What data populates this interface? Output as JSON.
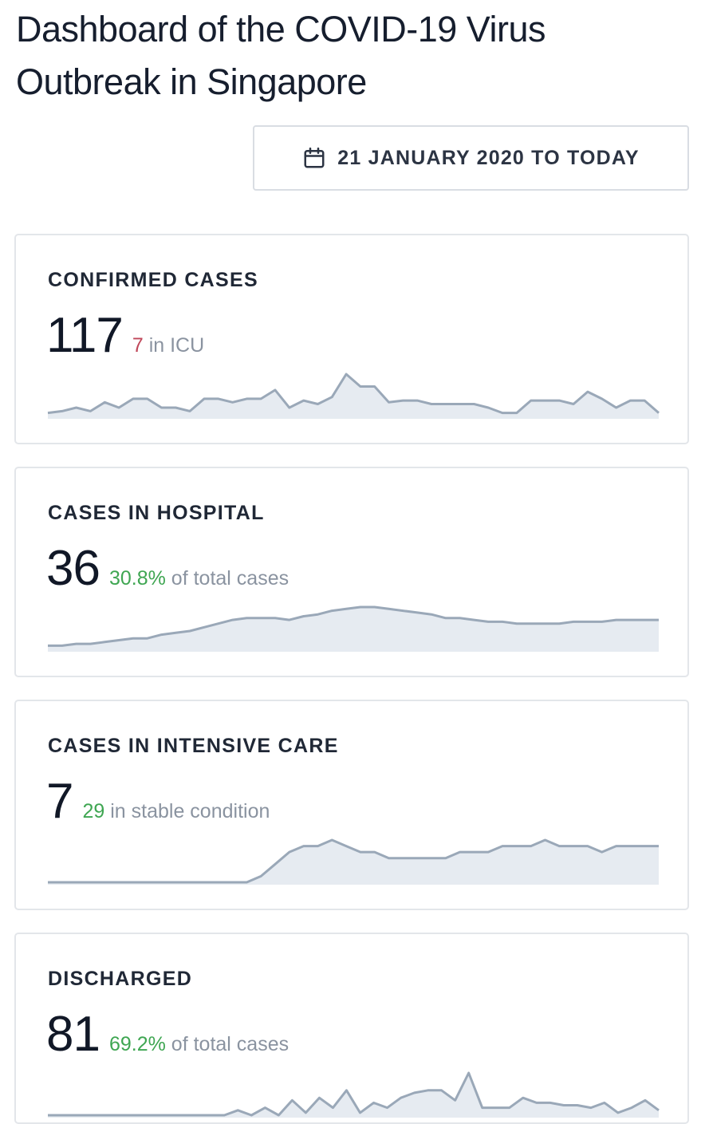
{
  "header": {
    "title": "Dashboard of the COVID-19 Virus Outbreak in Singapore"
  },
  "date_range": {
    "icon": "calendar-icon",
    "label": "21 JANUARY 2020 TO TODAY"
  },
  "colors": {
    "sparkline_stroke": "#9aa8b8",
    "sparkline_fill": "#e6ebf1",
    "accent_red": "#c0475a",
    "accent_green": "#3fa652"
  },
  "cards": [
    {
      "title": "CONFIRMED CASES",
      "value": "117",
      "sub_highlight": "7",
      "sub_text": " in ICU",
      "accent": "red",
      "trend": [
        2,
        3,
        5,
        3,
        8,
        5,
        10,
        10,
        5,
        5,
        3,
        10,
        10,
        8,
        10,
        10,
        15,
        5,
        9,
        7,
        11,
        24,
        17,
        17,
        8,
        9,
        9,
        7,
        7,
        7,
        7,
        5,
        2,
        2,
        9,
        9,
        9,
        7,
        14,
        10,
        5,
        9,
        9,
        2
      ]
    },
    {
      "title": "CASES IN HOSPITAL",
      "value": "36",
      "sub_highlight": "30.8%",
      "sub_text": " of total cases",
      "accent": "green",
      "trend": [
        2,
        2,
        3,
        3,
        4,
        5,
        6,
        6,
        8,
        9,
        10,
        12,
        14,
        16,
        17,
        17,
        17,
        16,
        18,
        19,
        21,
        22,
        23,
        23,
        22,
        21,
        20,
        19,
        17,
        17,
        16,
        15,
        15,
        14,
        14,
        14,
        14,
        15,
        15,
        15,
        16,
        16,
        16,
        16
      ]
    },
    {
      "title": "CASES IN INTENSIVE CARE",
      "value": "7",
      "sub_highlight": "29",
      "sub_text": " in stable condition",
      "accent": "green",
      "trend": [
        0,
        0,
        0,
        0,
        0,
        0,
        0,
        0,
        0,
        0,
        0,
        0,
        0,
        0,
        0,
        1,
        3,
        5,
        6,
        6,
        7,
        6,
        5,
        5,
        4,
        4,
        4,
        4,
        4,
        5,
        5,
        5,
        6,
        6,
        6,
        7,
        6,
        6,
        6,
        5,
        6,
        6,
        6,
        6
      ]
    },
    {
      "title": "DISCHARGED",
      "value": "81",
      "sub_highlight": "69.2%",
      "sub_text": " of total cases",
      "accent": "green",
      "trend": [
        0,
        0,
        0,
        0,
        0,
        0,
        0,
        0,
        0,
        0,
        0,
        0,
        0,
        0,
        2,
        0,
        3,
        0,
        6,
        1,
        7,
        3,
        10,
        1,
        5,
        3,
        7,
        9,
        10,
        10,
        6,
        17,
        3,
        3,
        3,
        7,
        5,
        5,
        4,
        4,
        3,
        5,
        1,
        3,
        6,
        2
      ]
    }
  ]
}
